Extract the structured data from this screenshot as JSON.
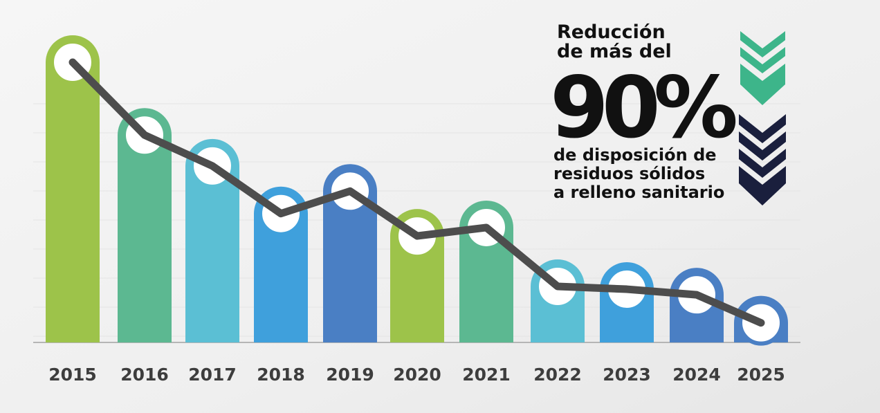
{
  "chart_data": {
    "type": "bar-line",
    "categories": [
      "2015",
      "2016",
      "2017",
      "2018",
      "2019",
      "2020",
      "2021",
      "2022",
      "2023",
      "2024",
      "2025"
    ],
    "values": [
      100,
      74,
      63,
      46,
      54,
      38,
      41,
      20,
      19,
      17,
      7
    ],
    "colors": [
      "#9dc34a",
      "#5cb891",
      "#5bbfd4",
      "#3fa0dc",
      "#4a7fc4",
      "#9dc34a",
      "#5cb891",
      "#5bbfd4",
      "#3fa0dc",
      "#4a7fc4",
      "#4a7fc4"
    ],
    "line_color": "#4d4d4d",
    "ylim": [
      0,
      100
    ],
    "annotation": [
      "Reducción",
      "de más del",
      "90%",
      "de disposición de",
      "residuos sólidos",
      "a relleno sanitario"
    ]
  }
}
